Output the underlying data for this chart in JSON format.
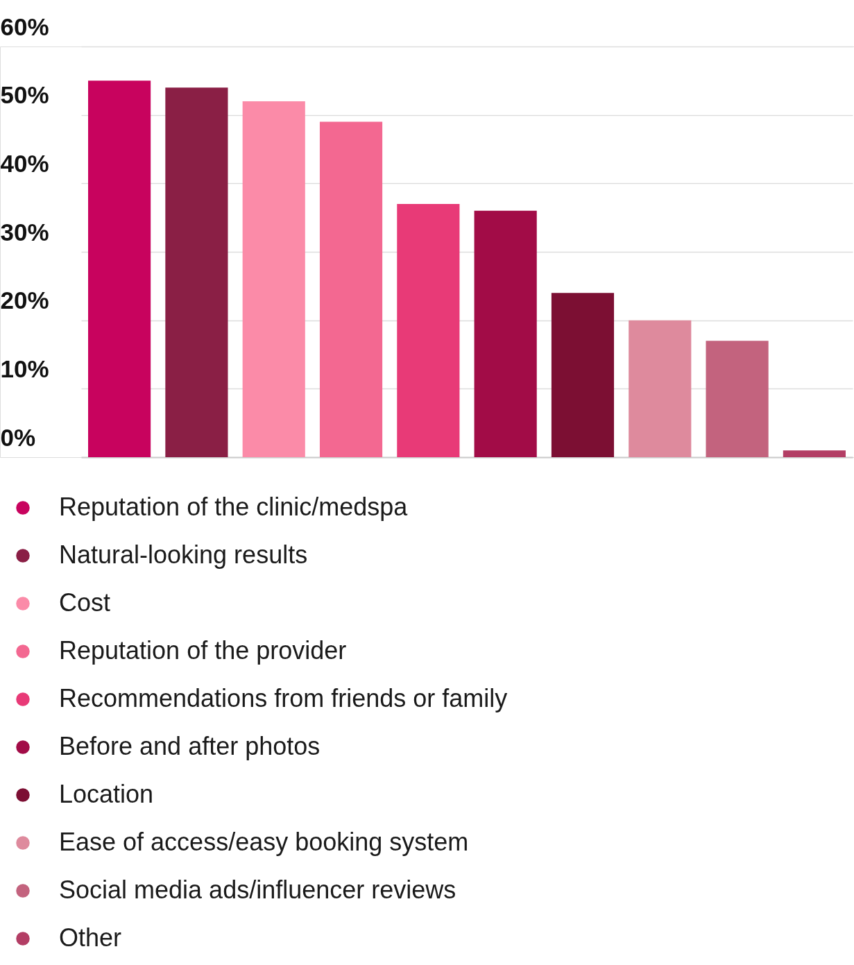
{
  "chart_data": {
    "type": "bar",
    "categories": [
      null
    ],
    "series": [
      {
        "name": "Reputation of the clinic/medspa",
        "color": "#c8035e",
        "values": [
          55
        ]
      },
      {
        "name": "Natural-looking results",
        "color": "#8a1f45",
        "values": [
          54
        ]
      },
      {
        "name": "Cost",
        "color": "#fb8ba8",
        "values": [
          52
        ]
      },
      {
        "name": "Reputation of the provider",
        "color": "#f36891",
        "values": [
          49
        ]
      },
      {
        "name": "Recommendations from friends or family",
        "color": "#e83a77",
        "values": [
          37
        ]
      },
      {
        "name": "Before and after photos",
        "color": "#a20c47",
        "values": [
          36
        ]
      },
      {
        "name": "Location",
        "color": "#7c0f33",
        "values": [
          24
        ]
      },
      {
        "name": "Ease of access/easy booking system",
        "color": "#de8a9d",
        "values": [
          20
        ]
      },
      {
        "name": "Social media ads/influencer reviews",
        "color": "#c3637e",
        "values": [
          17
        ]
      },
      {
        "name": "Other",
        "color": "#b33e65",
        "values": [
          1
        ]
      }
    ],
    "ylim": [
      0,
      60
    ],
    "yticks": [
      {
        "value": 0,
        "label": "0%"
      },
      {
        "value": 10,
        "label": "10%"
      },
      {
        "value": 20,
        "label": "20%"
      },
      {
        "value": 30,
        "label": "30%"
      },
      {
        "value": 40,
        "label": "40%"
      },
      {
        "value": 50,
        "label": "50%"
      },
      {
        "value": 60,
        "label": "60%"
      }
    ],
    "grid": "y",
    "legend": "bottom",
    "tick_labels": "y"
  }
}
